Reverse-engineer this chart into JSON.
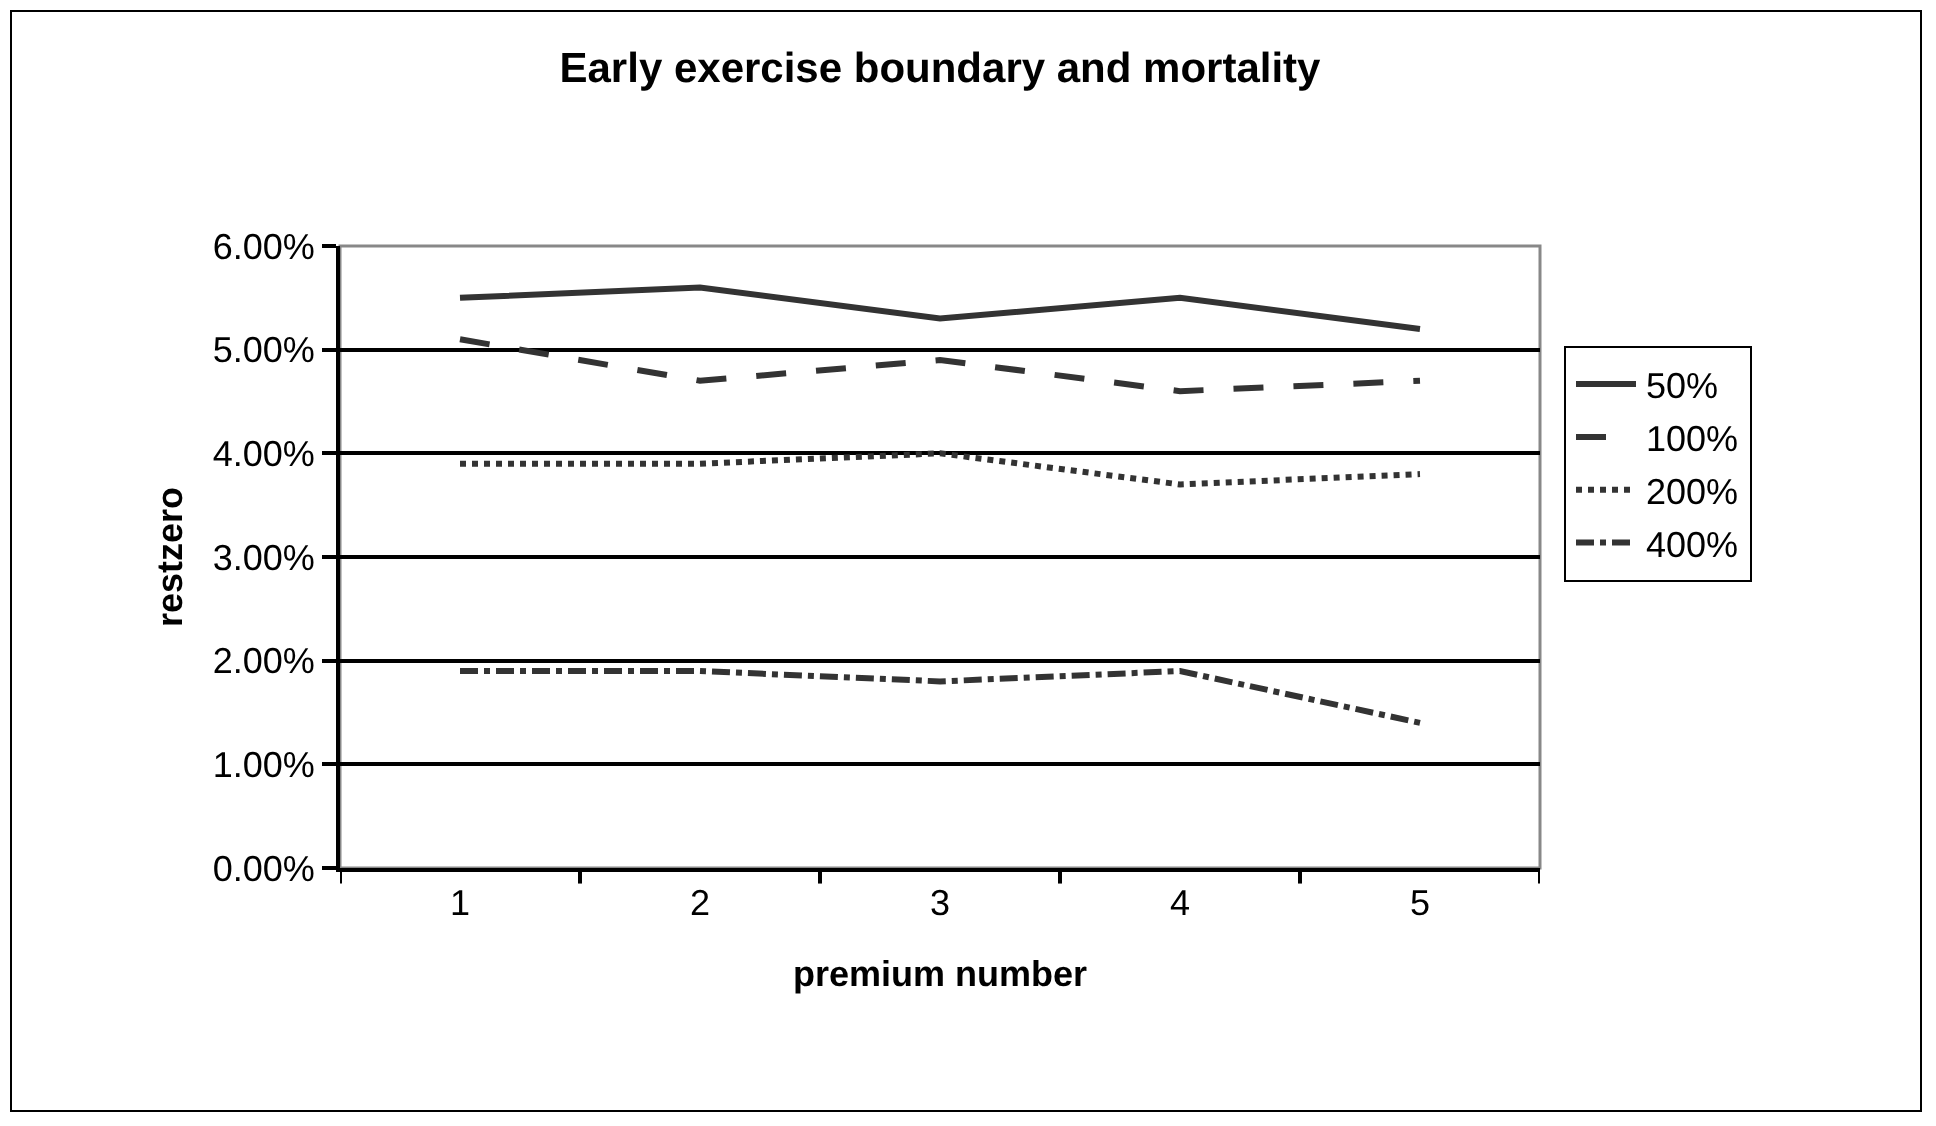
{
  "chart_data": {
    "type": "line",
    "title": "Early exercise boundary and mortality",
    "xlabel": "premium number",
    "ylabel": "restzero",
    "categories": [
      "1",
      "2",
      "3",
      "4",
      "5"
    ],
    "series": [
      {
        "name": "50%",
        "color": "#333333",
        "line_style": "solid",
        "values": [
          5.5,
          5.6,
          5.3,
          5.5,
          5.2
        ]
      },
      {
        "name": "100%",
        "color": "#333333",
        "line_style": "dashed",
        "values": [
          5.1,
          4.7,
          4.9,
          4.6,
          4.7
        ]
      },
      {
        "name": "200%",
        "color": "#333333",
        "line_style": "dotted",
        "values": [
          3.9,
          3.9,
          4.0,
          3.7,
          3.8
        ]
      },
      {
        "name": "400%",
        "color": "#333333",
        "line_style": "dashdot",
        "values": [
          1.9,
          1.9,
          1.8,
          1.9,
          1.4
        ]
      }
    ],
    "ylim": [
      0,
      6
    ],
    "yticks": [
      {
        "value": 0,
        "label": "0.00%"
      },
      {
        "value": 1,
        "label": "1.00%"
      },
      {
        "value": 2,
        "label": "2.00%"
      },
      {
        "value": 3,
        "label": "3.00%"
      },
      {
        "value": 4,
        "label": "4.00%"
      },
      {
        "value": 5,
        "label": "5.00%"
      },
      {
        "value": 6,
        "label": "6.00%"
      }
    ],
    "grid": "y",
    "legend": "right",
    "marker": "none"
  }
}
